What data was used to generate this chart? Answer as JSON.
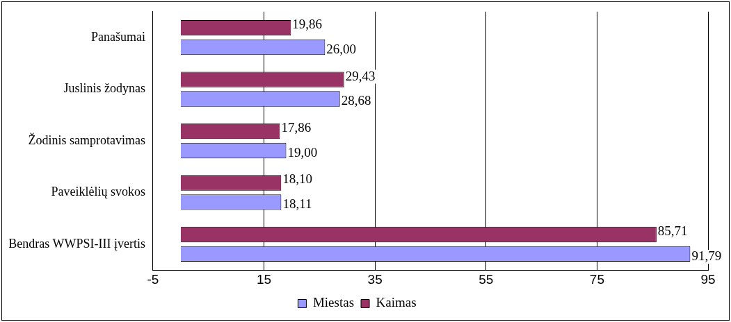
{
  "chart_data": {
    "type": "bar",
    "orientation": "horizontal",
    "categories": [
      "Panašumai",
      "Juslinis žodynas",
      "Žodinis samprotavimas",
      "Paveiklėlių svokos",
      "Bendras WWPSI-III įvertis"
    ],
    "series": [
      {
        "name": "Miestas",
        "color": "#9999ff",
        "values": [
          26.0,
          28.68,
          19.0,
          18.11,
          91.79
        ],
        "value_labels": [
          "26,00",
          "28,68",
          "19,00",
          "18,11",
          "91,79"
        ]
      },
      {
        "name": "Kaimas",
        "color": "#993366",
        "values": [
          19.86,
          29.43,
          17.86,
          18.1,
          85.71
        ],
        "value_labels": [
          "19,86",
          "29,43",
          "17,86",
          "18,10",
          "85,71"
        ]
      }
    ],
    "xlim": [
      -5,
      95
    ],
    "xticks": [
      -5,
      15,
      35,
      55,
      75,
      95
    ],
    "grid": "x",
    "legend": "bottom"
  }
}
